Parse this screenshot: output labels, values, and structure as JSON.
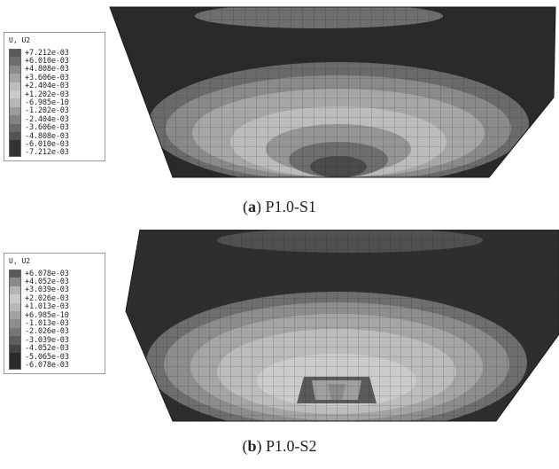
{
  "panels": [
    {
      "id": "a",
      "legend": {
        "title": "U, U2",
        "ticks": [
          "+7.212e-03",
          "+6.010e-03",
          "+4.808e-03",
          "+3.606e-03",
          "+2.404e-03",
          "+1.202e-03",
          "-6.985e-10",
          "-1.202e-03",
          "-2.404e-03",
          "-3.606e-03",
          "-4.808e-03",
          "-6.010e-03",
          "-7.212e-03"
        ],
        "colors": [
          "#5a5a5a",
          "#6e6e6e",
          "#8a8a8a",
          "#a4a4a4",
          "#bdbdbd",
          "#c9c9c9",
          "#b6b6b6",
          "#9c9c9c",
          "#838383",
          "#6a6a6a",
          "#525252",
          "#333333"
        ]
      },
      "caption": {
        "label": "a",
        "name": " P1.0-S1",
        "open": "(",
        "close": ")"
      }
    },
    {
      "id": "b",
      "legend": {
        "title": "U, U2",
        "ticks": [
          "+6.078e-03",
          "+4.052e-03",
          "+3.039e-03",
          "+2.026e-03",
          "+1.013e-03",
          "+6.985e-10",
          "-1.013e-03",
          "-2.026e-03",
          "-3.039e-03",
          "-4.052e-03",
          "-5.065e-03",
          "-6.078e-03"
        ],
        "colors": [
          "#5a5a5a",
          "#8a8a8a",
          "#b3b3b3",
          "#c9c9c9",
          "#b8b8b8",
          "#a2a2a2",
          "#8d8d8d",
          "#777777",
          "#5e5e5e",
          "#454545",
          "#2a2a2a"
        ]
      },
      "caption": {
        "label": "b",
        "name": " P1.0-S2",
        "open": "(",
        "close": ")"
      }
    }
  ]
}
